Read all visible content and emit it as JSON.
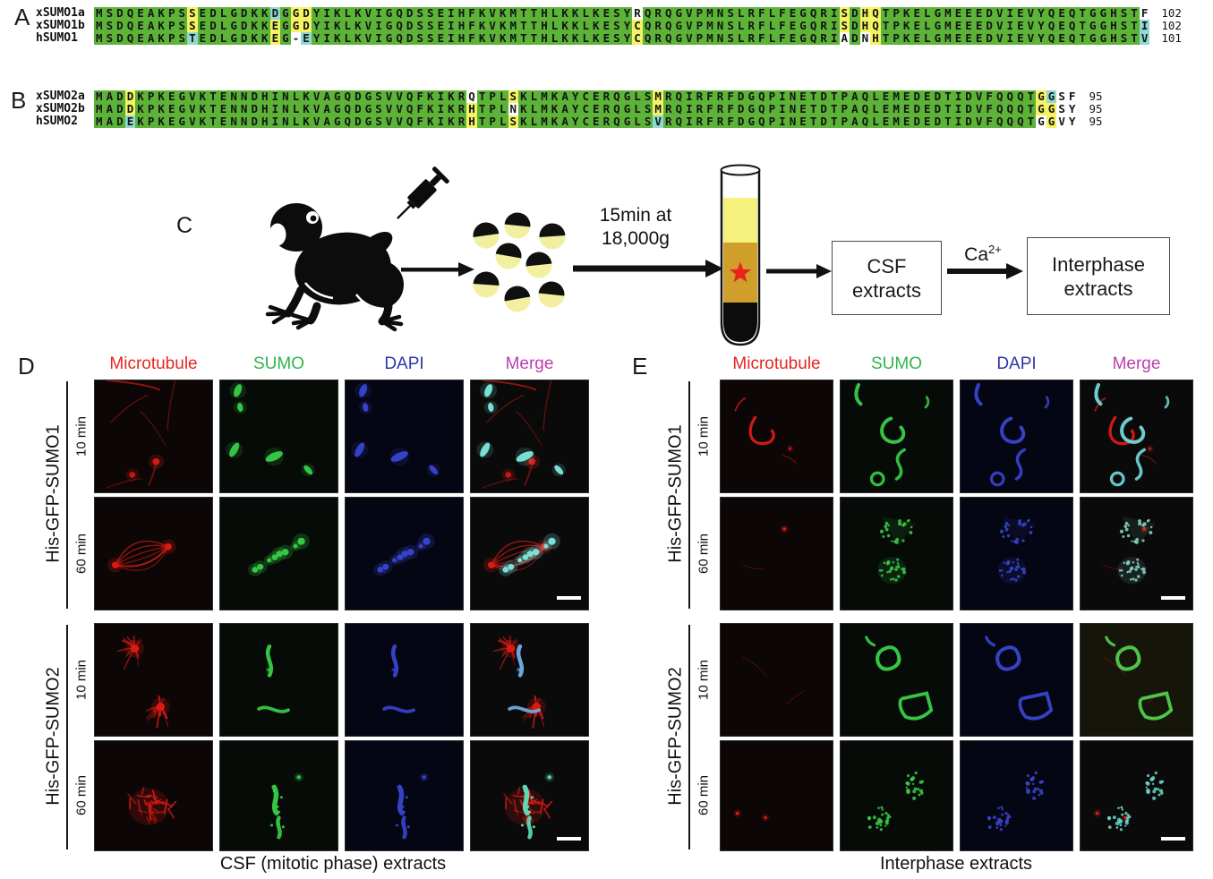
{
  "panel_a": {
    "label": "A",
    "rows": [
      {
        "name": "xSUMO1a",
        "seq": "MSDQEAKPSSEDLGDKKDGGDYIKLKVIGQDSSEIHFKVKMTTHLKKLKESYRQRQGVPMNSLRFLFEGQRISDHQTPKELGMEEEDVIEVYQEQTGGHSTF",
        "mask": "GGGGGGGGGYGGGGGGGCGYYGGGGGGGGGGGGGGGGGGGGGGGGGGGGGGGWGGGGGGGGGGGGGGGGGGGYGYYGGGGGGGGGGGGGGGGGGGGGGGGGW",
        "num": "102"
      },
      {
        "name": "xSUMO1b",
        "seq": "MSDQEAKPSSEDLGDKKEGGDYIKLKVIGQDSSEIHFKVKMTTHLKKLKESYCQRQGVPMNSLRFLFEGQRISDHQTPKELGMEEEDVIEVYQEQTGGHSTI",
        "mask": "GGGGGGGGGYGGGGGGGYGYYGGGGGGGGGGGGGGGGGGGGGGGGGGGGGGGYGGGGGGGGGGGGGGGGGGGYGYYGGGGGGGGGGGGGGGGGGGGGGGGGC",
        "num": "102"
      },
      {
        "name": "hSUMO1",
        "seq": "MSDQEAKPSTEDLGDKKEG-EYIKLKVIGQDSSEIHFKVKMTTHLKKLKESYCQRQGVPMNSLRFLFEGQRIADNHTPKELGMEEEDVIEVYQEQTGGHSTV",
        "mask": "GGGGGGGGGCGGGGGGGYGWCGGGGGGGGGGGGGGGGGGGGGGGGGGGGGGGYGGGGGGGGGGGGGGGGGGGWGWYGGGGGGGGGGGGGGGGGGGGGGGGGC",
        "num": "101"
      }
    ]
  },
  "panel_b": {
    "label": "B",
    "rows": [
      {
        "name": "xSUMO2a",
        "seq": "MADDKPKEGVKTENNDHINLKVAGQDGSVVQFKIKRQTPLSKLMKAYCERQGLSMRQIRFRFDGQPINETDTPAQLEMEDEDTIDVFQQQTGGSF",
        "mask": "GGGYGGGGGGGGGGGGGGGGGGGGGGGGGGGGGGGGWGGGYGGGGGGGGGGGGGYGGGGGGGGGGGGGGGGGGGGGGGGGGGGGGGGGGGGYC",
        "num": "95"
      },
      {
        "name": "xSUMO2b",
        "seq": "MADDKPKEGVKTENNDHINLKVAGQDGSVVQFKIKRHTPLNKLMKAYCERQGLSMRQIRFRFDGQPINETDTPAQLEMEDEDTIDVFQQQTGGSY",
        "mask": "GGGYGGGGGGGGGGGGGGGGGGGGGGGGGGGGGGGGYGGGWGGGGGGGGGGGGGYGGGGGGGGGGGGGGGGGGGGGGGGGGGGGGGGGGGGYY",
        "num": "95"
      },
      {
        "name": "hSUMO2",
        "seq": "MADEKPKEGVKTENNDHINLKVAGQDGSVVQFKIKRHTPLSKLMKAYCERQGLSVRQIRFRFDGQPINETDTPAQLEMEDEDTIDVFQQQTGGVY",
        "mask": "GGGCGGGGGGGGGGGGGGGGGGGGGGGGGGGGGGGGYGGGYGGGGGGGGGGGGGCGGGGGGGGGGGGGGGGGGGGGGGGGGGGGGGGGGGGWY",
        "num": "95"
      }
    ]
  },
  "panel_c": {
    "label": "C",
    "time_line1": "15min at",
    "time_line2": "18,000g",
    "csf_line1": "CSF",
    "csf_line2": "extracts",
    "calcium": "Ca",
    "calcium_sup": "2+",
    "inter_line1": "Interphase",
    "inter_line2": "extracts"
  },
  "panel_d": {
    "label": "D",
    "headers": [
      "Microtubule",
      "SUMO",
      "DAPI",
      "Merge"
    ],
    "groups": [
      "His-GFP-SUMO1",
      "His-GFP-SUMO2"
    ],
    "row_times": [
      "10 min",
      "60 min",
      "10 min",
      "60 min"
    ],
    "caption": "CSF (mitotic phase) extracts"
  },
  "panel_e": {
    "label": "E",
    "headers": [
      "Microtubule",
      "SUMO",
      "DAPI",
      "Merge"
    ],
    "groups": [
      "His-GFP-SUMO1",
      "His-GFP-SUMO2"
    ],
    "row_times": [
      "10 min",
      "60 min",
      "10 min",
      "60 min"
    ],
    "caption": "Interphase extracts"
  },
  "colors": {
    "align_green": "#5cb338",
    "align_yellow": "#f5f263",
    "align_cyan": "#8fd8d3",
    "header_colors": [
      "#e62520",
      "#2fb54a",
      "#2e35a8",
      "#bb3fae"
    ],
    "microtubule_red": "#da1b14",
    "sumo_green": "#38cf48",
    "dapi_blue": "#3945cf",
    "star_red": "#e8231d"
  }
}
